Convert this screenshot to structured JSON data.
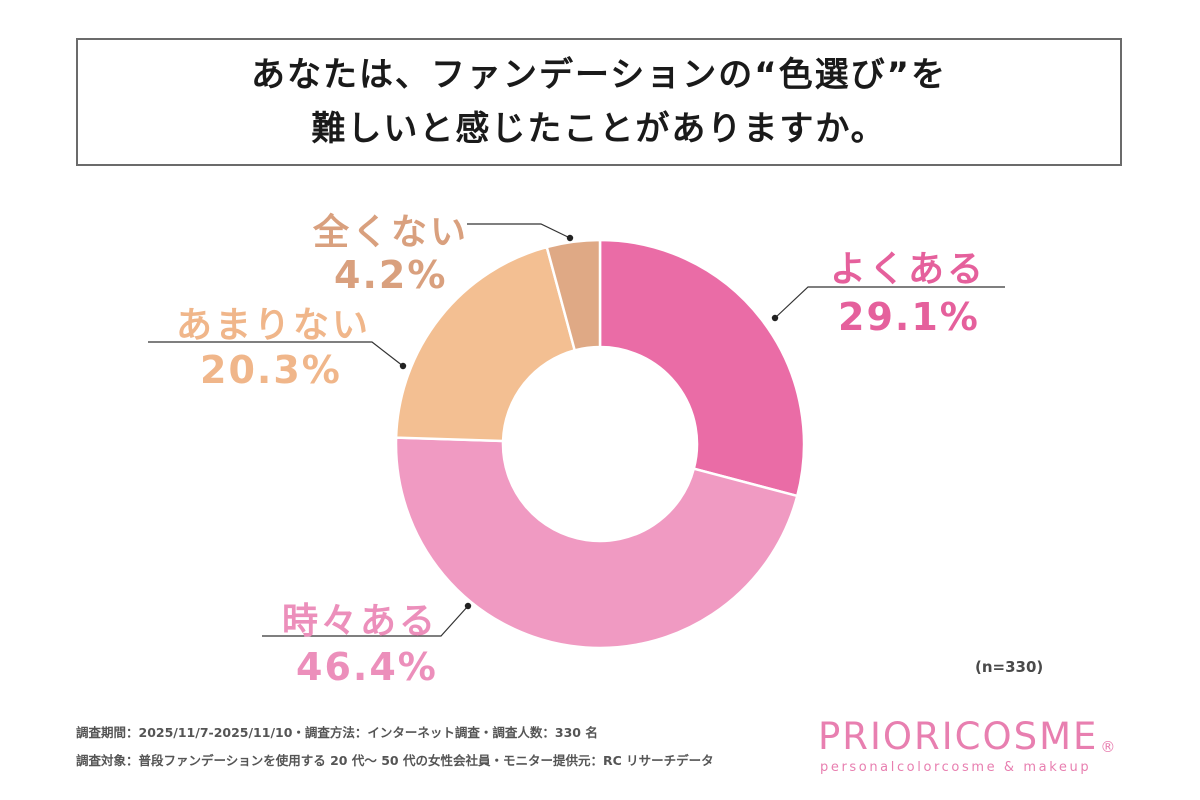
{
  "title": {
    "line1": "あなたは、ファンデーションの“色選び”を",
    "line2": "難しいと感じたことがありますか。"
  },
  "chart_data": {
    "type": "pie",
    "donut": true,
    "categories": [
      "よくある",
      "時々ある",
      "あまりない",
      "全くない"
    ],
    "values": [
      29.1,
      46.4,
      20.3,
      4.2
    ],
    "labels": [
      "29.1%",
      "46.4%",
      "20.3%",
      "4.2%"
    ],
    "colors": [
      "#ea6ca6",
      "#f09ac2",
      "#f3bf92",
      "#dfa985"
    ],
    "label_colors": [
      "#e5609c",
      "#ec8fbb",
      "#f0b68a",
      "#d9a07e"
    ],
    "sample_size": "(n=330)"
  },
  "footer": {
    "line1": "調査期間：2025/11/7-2025/11/10・調査方法：インターネット調査・調査人数：330 名",
    "line2": "調査対象：普段ファンデーションを使用する 20 代〜 50 代の女性会社員・モニター提供元：RC リサーチデータ"
  },
  "brand": {
    "name": "PRIORICOSME",
    "registered": "®",
    "tagline": "personalcolorcosme & makeup"
  }
}
